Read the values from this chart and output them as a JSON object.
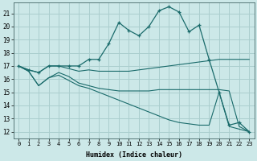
{
  "xlabel": "Humidex (Indice chaleur)",
  "background_color": "#cce8e8",
  "grid_color": "#aacece",
  "line_color": "#1a6b6b",
  "xlim": [
    -0.5,
    23.5
  ],
  "ylim": [
    11.5,
    21.8
  ],
  "yticks": [
    12,
    13,
    14,
    15,
    16,
    17,
    18,
    19,
    20,
    21
  ],
  "xticks": [
    0,
    1,
    2,
    3,
    4,
    5,
    6,
    7,
    8,
    9,
    10,
    11,
    12,
    13,
    14,
    15,
    16,
    17,
    18,
    19,
    20,
    21,
    22,
    23
  ],
  "line1_x": [
    0,
    1,
    2,
    3,
    4,
    5,
    6,
    7,
    8,
    9,
    10,
    11,
    12,
    13,
    14,
    15,
    16,
    17,
    18,
    19,
    20,
    21,
    22,
    23
  ],
  "line1_y": [
    17.0,
    16.7,
    16.5,
    17.0,
    17.0,
    17.0,
    17.0,
    17.5,
    17.5,
    18.7,
    20.3,
    19.7,
    19.3,
    20.0,
    21.2,
    21.5,
    21.1,
    19.6,
    20.1,
    17.5,
    15.0,
    12.5,
    12.7,
    12.0
  ],
  "line2_x": [
    0,
    1,
    2,
    3,
    4,
    5,
    6,
    7,
    8,
    9,
    10,
    11,
    12,
    13,
    14,
    15,
    16,
    17,
    18,
    19,
    20,
    21,
    22,
    23
  ],
  "line2_y": [
    17.0,
    16.7,
    16.5,
    17.0,
    17.0,
    16.8,
    16.6,
    16.7,
    16.6,
    16.6,
    16.6,
    16.6,
    16.7,
    16.8,
    16.9,
    17.0,
    17.1,
    17.2,
    17.3,
    17.4,
    17.5,
    17.5,
    17.5,
    17.5
  ],
  "line3_x": [
    0,
    1,
    2,
    3,
    4,
    5,
    6,
    7,
    8,
    9,
    10,
    11,
    12,
    13,
    14,
    15,
    16,
    17,
    18,
    19,
    20,
    21,
    22,
    23
  ],
  "line3_y": [
    17.0,
    16.6,
    15.5,
    16.1,
    16.5,
    16.2,
    15.7,
    15.5,
    15.3,
    15.2,
    15.1,
    15.1,
    15.1,
    15.1,
    15.2,
    15.2,
    15.2,
    15.2,
    15.2,
    15.2,
    15.2,
    15.1,
    12.4,
    12.0
  ],
  "line4_x": [
    0,
    1,
    2,
    3,
    4,
    5,
    6,
    7,
    8,
    9,
    10,
    11,
    12,
    13,
    14,
    15,
    16,
    17,
    18,
    19,
    20,
    21,
    22,
    23
  ],
  "line4_y": [
    17.0,
    16.6,
    15.5,
    16.1,
    16.3,
    15.9,
    15.5,
    15.3,
    15.0,
    14.7,
    14.4,
    14.1,
    13.8,
    13.5,
    13.2,
    12.9,
    12.7,
    12.6,
    12.5,
    12.5,
    15.0,
    12.4,
    12.2,
    12.0
  ]
}
